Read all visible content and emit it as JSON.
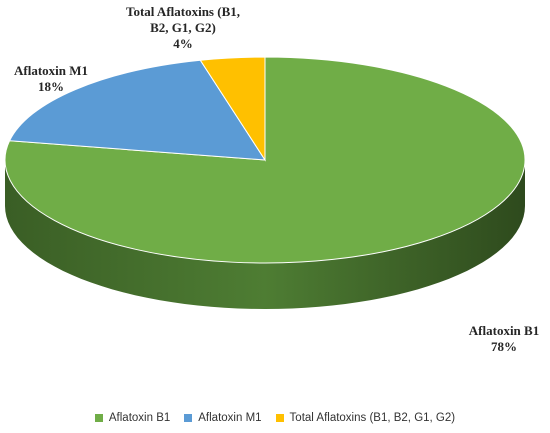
{
  "chart_data": {
    "type": "pie",
    "style": "3d",
    "title": "",
    "slices": [
      {
        "name": "Aflatoxin B1",
        "value": 78,
        "label": "78%",
        "color": "#70ad47",
        "side_color": "#3f6628"
      },
      {
        "name": "Aflatoxin M1",
        "value": 18,
        "label": "18%",
        "color": "#5b9bd5",
        "side_color": "#2e5e8c"
      },
      {
        "name": "Total Aflatoxins (B1, B2, G1, G2)",
        "value": 4,
        "label": "4%",
        "color": "#ffc000",
        "side_color": "#a07800"
      }
    ],
    "legend_position": "bottom"
  },
  "labels": {
    "b1_lines": [
      "Aflatoxin B1",
      "78%"
    ],
    "m1_lines": [
      "Aflatoxin M1",
      "18%"
    ],
    "total_lines": [
      "Total Aflatoxins (B1,",
      "B2, G1, G2)",
      "4%"
    ]
  }
}
